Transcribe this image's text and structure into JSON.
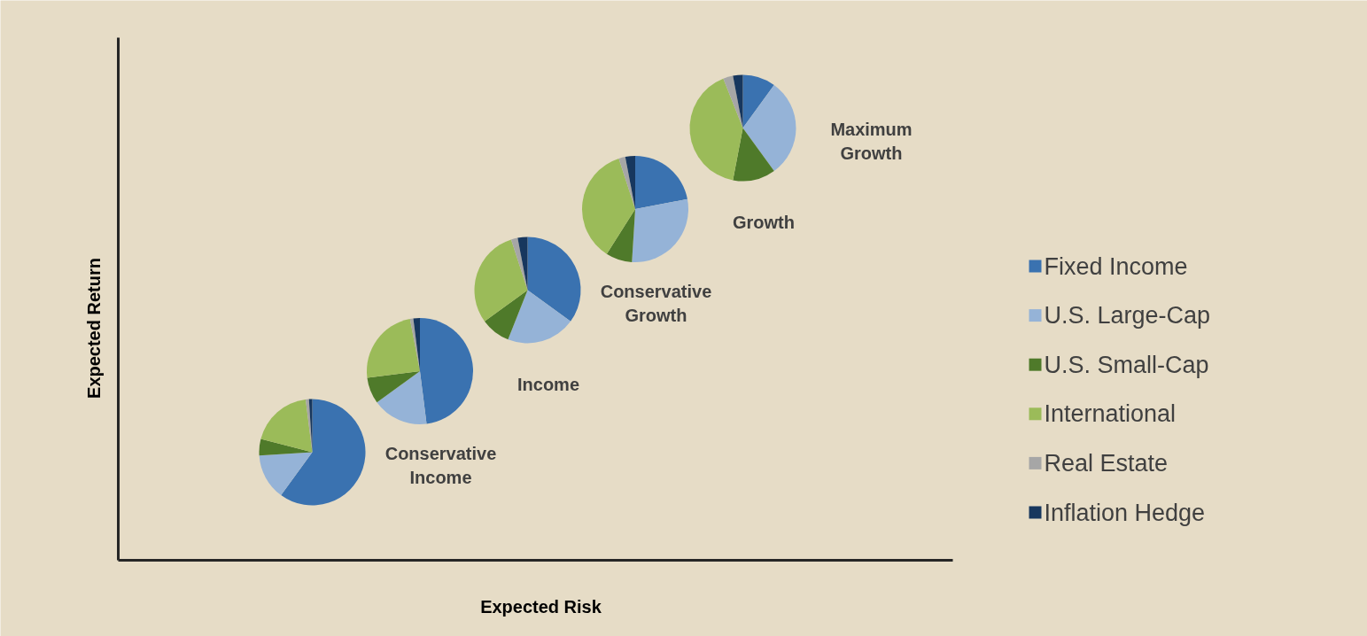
{
  "chart_data": [
    {
      "type": "other",
      "xlabel": "Expected Risk",
      "ylabel": "Expected Return"
    },
    {
      "type": "pie",
      "title": "Conservative Income",
      "legend": "right",
      "categories": [
        "Fixed Income",
        "U.S. Large-Cap",
        "U.S. Small-Cap",
        "International",
        "Real Estate",
        "Inflation Hedge"
      ],
      "values": [
        60,
        14,
        5,
        19,
        1,
        1
      ],
      "colors": [
        "#3a72b0",
        "#95b3d7",
        "#4f7a2a",
        "#9bbb59",
        "#a6a6a6",
        "#17375e"
      ]
    },
    {
      "type": "pie",
      "title": "Income",
      "categories": [
        null,
        null,
        null,
        null,
        null,
        null
      ],
      "values": [
        48,
        17,
        8,
        24,
        1,
        2
      ],
      "colors": [
        "#3a72b0",
        "#95b3d7",
        "#4f7a2a",
        "#9bbb59",
        "#a6a6a6",
        "#17375e"
      ]
    },
    {
      "type": "pie",
      "title": "Conservative Growth",
      "categories": [
        null,
        null,
        null,
        null,
        null,
        null
      ],
      "values": [
        35,
        21,
        9,
        30,
        2,
        3
      ],
      "colors": [
        "#3a72b0",
        "#95b3d7",
        "#4f7a2a",
        "#9bbb59",
        "#a6a6a6",
        "#17375e"
      ]
    },
    {
      "type": "pie",
      "title": "Growth",
      "categories": [
        null,
        null,
        null,
        null,
        null,
        null
      ],
      "values": [
        22,
        29,
        8,
        36,
        2,
        3
      ],
      "colors": [
        "#3a72b0",
        "#95b3d7",
        "#4f7a2a",
        "#9bbb59",
        "#a6a6a6",
        "#17375e"
      ]
    },
    {
      "type": "pie",
      "title": "Maximum Growth",
      "categories": [
        null,
        null,
        null,
        null,
        null,
        null
      ],
      "values": [
        10,
        30,
        13,
        41,
        3,
        3
      ],
      "colors": [
        "#3a72b0",
        "#95b3d7",
        "#4f7a2a",
        "#9bbb59",
        "#a6a6a6",
        "#17375e"
      ]
    }
  ]
}
